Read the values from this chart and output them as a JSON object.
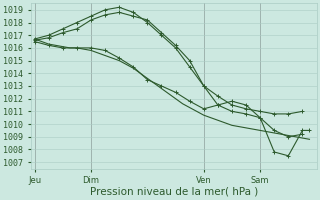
{
  "bg_color": "#cce8e0",
  "grid_color": "#aaccc4",
  "line_color": "#2d5a2d",
  "xlabel": "Pression niveau de la mer( hPa )",
  "xlabel_fontsize": 7.5,
  "tick_fontsize": 6,
  "ylim": [
    1006.5,
    1019.5
  ],
  "yticks": [
    1007,
    1008,
    1009,
    1010,
    1011,
    1012,
    1013,
    1014,
    1015,
    1016,
    1017,
    1018,
    1019
  ],
  "xtick_labels": [
    "Jeu",
    "Dim",
    "Ven",
    "Sam"
  ],
  "xtick_positions": [
    0,
    16,
    48,
    64
  ],
  "xlim": [
    -1,
    80
  ],
  "vlines": [
    0,
    16,
    48,
    64
  ],
  "s1_x": [
    0,
    2,
    4,
    6,
    8,
    10,
    12,
    14,
    16,
    18,
    20,
    22,
    24,
    26,
    28,
    30,
    32,
    34,
    36,
    38,
    40,
    42,
    44,
    46,
    48,
    50,
    52,
    54,
    56,
    58,
    60,
    62,
    64,
    66,
    68,
    70,
    72,
    74,
    76,
    78
  ],
  "s1_y": [
    1016.7,
    1016.5,
    1016.3,
    1016.2,
    1016.1,
    1016.0,
    1016.0,
    1015.9,
    1015.8,
    1015.6,
    1015.4,
    1015.2,
    1015.0,
    1014.7,
    1014.4,
    1014.0,
    1013.6,
    1013.2,
    1012.8,
    1012.4,
    1012.0,
    1011.6,
    1011.3,
    1011.0,
    1010.7,
    1010.5,
    1010.3,
    1010.1,
    1009.9,
    1009.8,
    1009.7,
    1009.6,
    1009.5,
    1009.4,
    1009.3,
    1009.2,
    1009.1,
    1009.0,
    1008.9,
    1008.8
  ],
  "s2_x": [
    0,
    4,
    8,
    12,
    16,
    20,
    24,
    28,
    32,
    36,
    40,
    44,
    48,
    52,
    56,
    60,
    64,
    68,
    72,
    76
  ],
  "s2_y": [
    1016.6,
    1016.8,
    1017.2,
    1017.5,
    1018.2,
    1018.6,
    1018.8,
    1018.5,
    1018.2,
    1017.2,
    1016.2,
    1015.0,
    1013.0,
    1012.2,
    1011.5,
    1011.2,
    1011.0,
    1010.8,
    1010.8,
    1011.0
  ],
  "s3_x": [
    0,
    4,
    8,
    12,
    16,
    20,
    24,
    28,
    32,
    36,
    40,
    44,
    48,
    52,
    56,
    60,
    64,
    68,
    72,
    76
  ],
  "s3_y": [
    1016.7,
    1017.0,
    1017.5,
    1018.0,
    1018.5,
    1019.0,
    1019.2,
    1018.8,
    1018.0,
    1017.0,
    1016.0,
    1014.5,
    1013.0,
    1011.5,
    1011.0,
    1010.8,
    1010.5,
    1009.5,
    1009.0,
    1009.2
  ],
  "s4_x": [
    0,
    4,
    8,
    12,
    16,
    20,
    24,
    28,
    32,
    36,
    40,
    44,
    48,
    52,
    56,
    60,
    64,
    68,
    72,
    76,
    78
  ],
  "s4_y": [
    1016.5,
    1016.2,
    1016.0,
    1016.0,
    1016.0,
    1015.8,
    1015.2,
    1014.5,
    1013.5,
    1013.0,
    1012.5,
    1011.8,
    1011.2,
    1011.5,
    1011.8,
    1011.5,
    1010.5,
    1007.8,
    1007.5,
    1009.5,
    1009.5
  ]
}
